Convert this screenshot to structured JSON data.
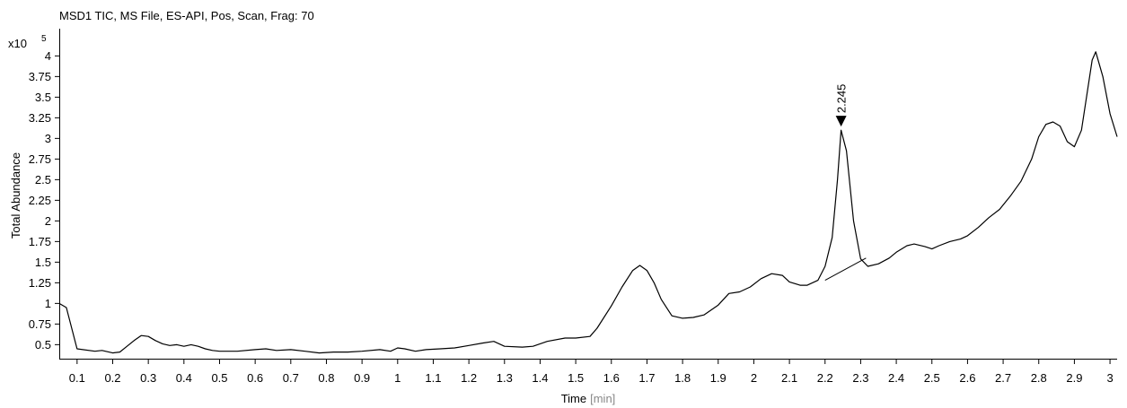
{
  "chart_data": {
    "type": "line",
    "title": "MSD1 TIC, MS File, ES-API, Pos, Scan, Frag: 70",
    "xlabel": "Time",
    "xlabel_unit": "[min]",
    "ylabel": "Total Abundance",
    "y_multiplier": "x10",
    "y_exponent": "5",
    "xlim": [
      0.05,
      3.02
    ],
    "ylim": [
      0.33,
      4.33
    ],
    "x_ticks": [
      "0.1",
      "0.2",
      "0.3",
      "0.4",
      "0.5",
      "0.6",
      "0.7",
      "0.8",
      "0.9",
      "1",
      "1.1",
      "1.2",
      "1.3",
      "1.4",
      "1.5",
      "1.6",
      "1.7",
      "1.8",
      "1.9",
      "2",
      "2.1",
      "2.2",
      "2.3",
      "2.4",
      "2.5",
      "2.6",
      "2.7",
      "2.8",
      "2.9",
      "3"
    ],
    "y_ticks": [
      "0.5",
      "0.75",
      "1",
      "1.25",
      "1.5",
      "1.75",
      "2",
      "2.25",
      "2.5",
      "2.75",
      "3",
      "3.25",
      "3.5",
      "3.75",
      "4"
    ],
    "grid": false,
    "series": [
      {
        "color": "#000000",
        "x": [
          0.05,
          0.07,
          0.1,
          0.15,
          0.17,
          0.2,
          0.22,
          0.24,
          0.26,
          0.28,
          0.3,
          0.32,
          0.34,
          0.36,
          0.38,
          0.4,
          0.42,
          0.44,
          0.46,
          0.48,
          0.5,
          0.55,
          0.6,
          0.63,
          0.66,
          0.7,
          0.74,
          0.78,
          0.82,
          0.86,
          0.9,
          0.95,
          0.98,
          1.0,
          1.02,
          1.05,
          1.08,
          1.12,
          1.16,
          1.2,
          1.24,
          1.27,
          1.3,
          1.35,
          1.38,
          1.42,
          1.47,
          1.5,
          1.54,
          1.56,
          1.6,
          1.63,
          1.66,
          1.68,
          1.7,
          1.72,
          1.74,
          1.77,
          1.8,
          1.83,
          1.86,
          1.9,
          1.93,
          1.96,
          1.99,
          2.02,
          2.05,
          2.08,
          2.1,
          2.13,
          2.15,
          2.18,
          2.2,
          2.22,
          2.235,
          2.245,
          2.26,
          2.28,
          2.3,
          2.32,
          2.35,
          2.38,
          2.4,
          2.43,
          2.45,
          2.48,
          2.5,
          2.52,
          2.55,
          2.58,
          2.6,
          2.63,
          2.66,
          2.69,
          2.72,
          2.75,
          2.78,
          2.8,
          2.82,
          2.84,
          2.86,
          2.88,
          2.9,
          2.92,
          2.95,
          2.96,
          2.98,
          3.0,
          3.02
        ],
        "y": [
          1.0,
          0.95,
          0.45,
          0.42,
          0.43,
          0.4,
          0.41,
          0.48,
          0.55,
          0.61,
          0.6,
          0.55,
          0.51,
          0.49,
          0.5,
          0.48,
          0.5,
          0.48,
          0.45,
          0.43,
          0.42,
          0.42,
          0.44,
          0.45,
          0.43,
          0.44,
          0.42,
          0.4,
          0.41,
          0.41,
          0.42,
          0.44,
          0.42,
          0.46,
          0.45,
          0.42,
          0.44,
          0.45,
          0.46,
          0.49,
          0.52,
          0.54,
          0.48,
          0.47,
          0.48,
          0.54,
          0.58,
          0.58,
          0.6,
          0.7,
          0.97,
          1.2,
          1.4,
          1.46,
          1.4,
          1.25,
          1.05,
          0.85,
          0.82,
          0.83,
          0.86,
          0.98,
          1.12,
          1.14,
          1.2,
          1.3,
          1.36,
          1.34,
          1.26,
          1.22,
          1.22,
          1.28,
          1.45,
          1.8,
          2.5,
          3.1,
          2.85,
          2.0,
          1.54,
          1.45,
          1.48,
          1.55,
          1.62,
          1.7,
          1.72,
          1.69,
          1.66,
          1.7,
          1.75,
          1.78,
          1.82,
          1.92,
          2.04,
          2.14,
          2.3,
          2.48,
          2.75,
          3.02,
          3.17,
          3.2,
          3.15,
          2.96,
          2.9,
          3.1,
          3.95,
          4.05,
          3.75,
          3.3,
          3.02
        ]
      }
    ],
    "annotations": [
      {
        "text": "2.245",
        "x": 2.245,
        "y": 3.1,
        "marker": "triangle-down"
      }
    ],
    "baseline_segment": {
      "x": [
        2.2,
        2.315
      ],
      "y": [
        1.28,
        1.55
      ]
    }
  }
}
